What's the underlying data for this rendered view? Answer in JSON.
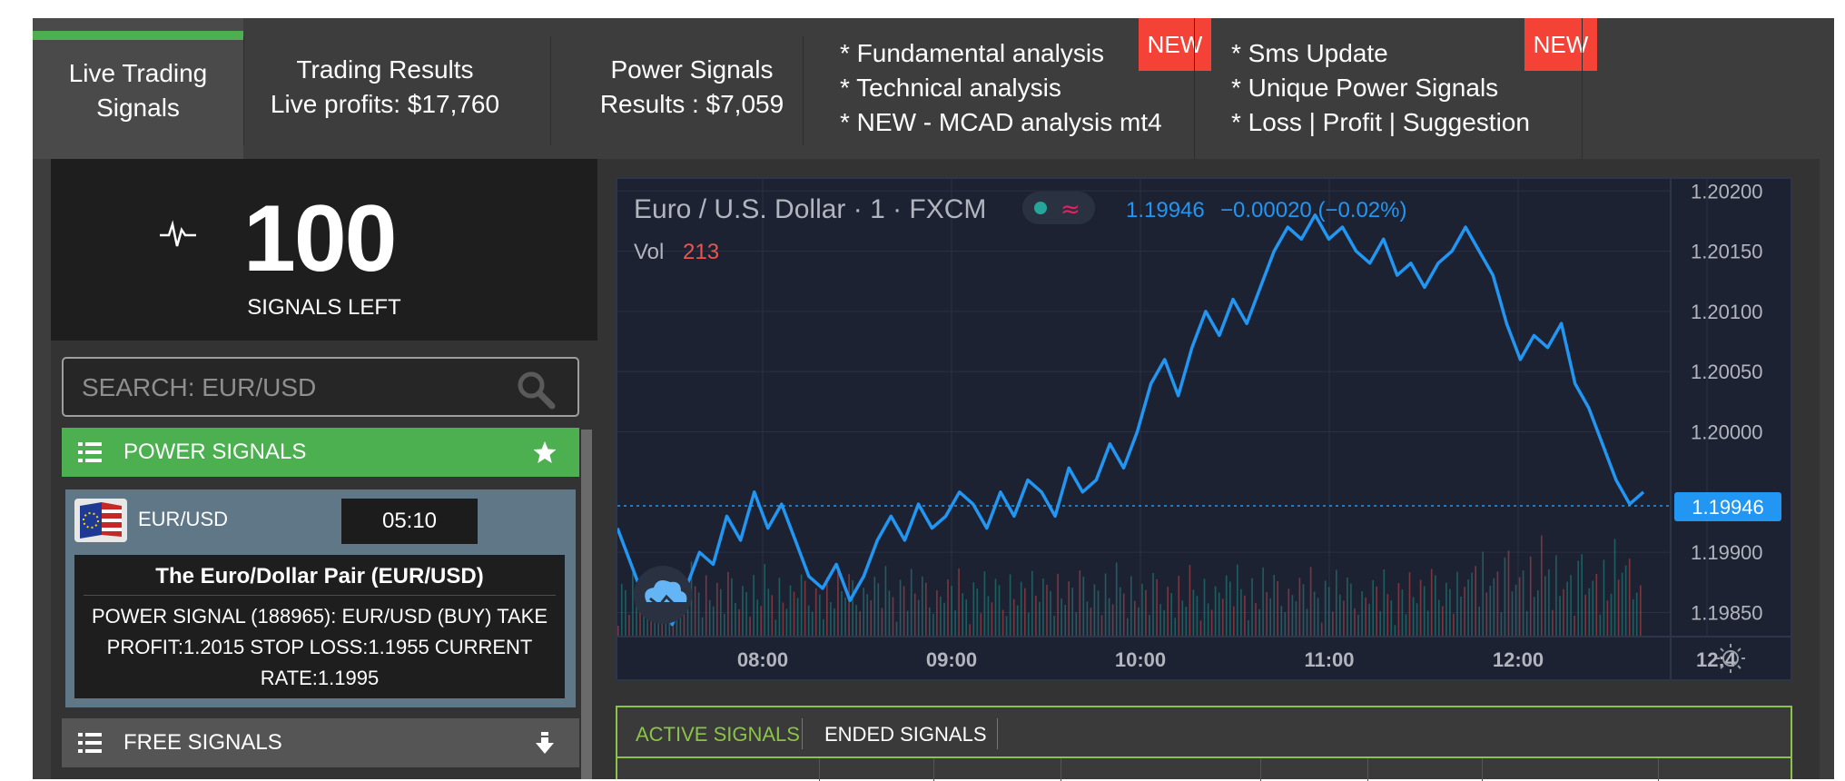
{
  "tabs": [
    {
      "line1": "Live Trading",
      "line2": "Signals"
    },
    {
      "line1": "Trading Results",
      "line2": "Live profits: $17,760"
    },
    {
      "line1": "Power Signals",
      "line2": "Results : $7,059"
    }
  ],
  "features1": {
    "lines": [
      "* Fundamental analysis",
      "* Technical analysis",
      "* NEW - MCAD analysis mt4"
    ],
    "badge": "NEW"
  },
  "features2": {
    "lines": [
      "* Sms Update",
      "* Unique Power Signals",
      "* Loss | Profit | Suggestion"
    ],
    "badge": "NEW"
  },
  "counter": {
    "value": "100",
    "label": "SIGNALS LEFT",
    "icon": "pulse-icon"
  },
  "search": {
    "placeholder": "SEARCH: EUR/USD",
    "icon": "search-icon"
  },
  "power_signals": {
    "label": "POWER SIGNALS",
    "icon": "list-icon",
    "end_icon": "star-icon"
  },
  "signal_card": {
    "pair": "EUR/USD",
    "timer": "05:10",
    "title": "The Euro/Dollar Pair (EUR/USD)",
    "text": "POWER SIGNAL (188965): EUR/USD (BUY) TAKE PROFIT:1.2015 STOP LOSS:1.1955 CURRENT RATE:1.1995",
    "flag_icon": "eu-us-flag-icon"
  },
  "free_signals": {
    "label": "FREE SIGNALS",
    "icon": "list-icon",
    "end_icon": "arrow-down-icon"
  },
  "chart": {
    "symbol": "Euro / U.S. Dollar · 1 · FXCM",
    "price": "1.19946",
    "change": "−0.00020 (−0.02%)",
    "vol_label": "Vol",
    "vol_value": "213",
    "current_price_label": "1.19946",
    "colors": {
      "line": "#2196f3",
      "bg": "#1d2233",
      "vol_up": "#26a69a",
      "vol_down": "#ef5350"
    }
  },
  "chart_data": {
    "type": "line",
    "y_ticks": [
      "1.20200",
      "1.20150",
      "1.20100",
      "1.20050",
      "1.20000",
      "1.19900",
      "1.19850"
    ],
    "x_ticks": [
      "08:00",
      "09:00",
      "10:00",
      "11:00",
      "12:00",
      "12:4"
    ],
    "ylim": [
      1.1983,
      1.2021
    ],
    "series": [
      {
        "values": [
          1.1992,
          1.1989,
          1.1986,
          1.1988,
          1.1984,
          1.1987,
          1.199,
          1.1989,
          1.1993,
          1.1991,
          1.1995,
          1.1992,
          1.1994,
          1.1991,
          1.1988,
          1.1987,
          1.1989,
          1.1986,
          1.1988,
          1.1991,
          1.1993,
          1.1991,
          1.1994,
          1.1992,
          1.1993,
          1.1995,
          1.1994,
          1.1992,
          1.1995,
          1.1993,
          1.1996,
          1.1995,
          1.1993,
          1.1997,
          1.1995,
          1.1996,
          1.1999,
          1.1997,
          1.2,
          1.2004,
          1.2006,
          1.2003,
          1.2007,
          1.201,
          1.2008,
          1.2011,
          1.2009,
          1.2012,
          1.2015,
          1.2017,
          1.2016,
          1.2018,
          1.2016,
          1.2017,
          1.2015,
          1.2014,
          1.2016,
          1.2013,
          1.2014,
          1.2012,
          1.2014,
          1.2015,
          1.2017,
          1.2015,
          1.2013,
          1.2009,
          1.2006,
          1.2008,
          1.2007,
          1.2009,
          1.2004,
          1.2002,
          1.1999,
          1.1996,
          1.1994,
          1.1995
        ]
      }
    ],
    "volume_shown": true
  },
  "signals_tabs": {
    "active": "ACTIVE SIGNALS",
    "ended": "ENDED SIGNALS"
  }
}
